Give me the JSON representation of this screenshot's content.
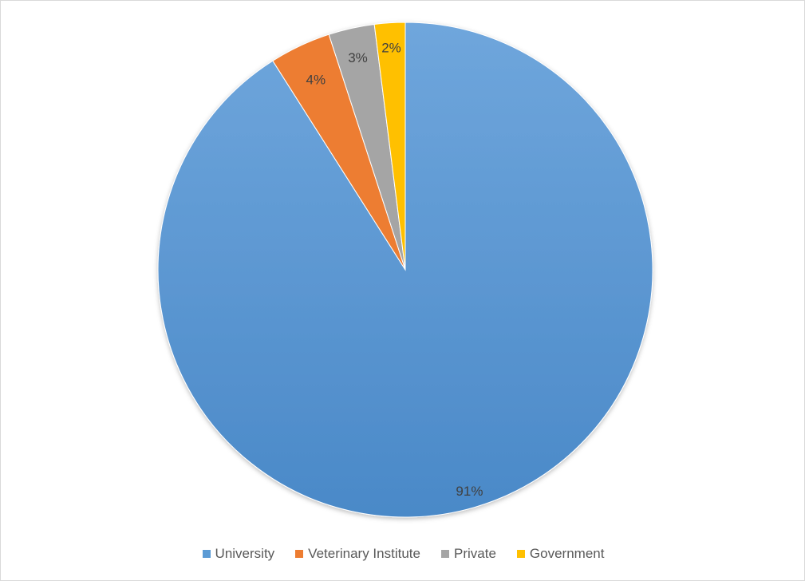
{
  "chart_data": {
    "type": "pie",
    "title": "",
    "categories": [
      "University",
      "Veterinary Institute",
      "Private",
      "Government"
    ],
    "values": [
      91,
      4,
      3,
      2
    ],
    "data_labels": [
      "91%",
      "4%",
      "3%",
      "2%"
    ],
    "colors": [
      "#5b9bd5",
      "#ed7d31",
      "#a5a5a5",
      "#ffc000"
    ],
    "legend_position": "bottom",
    "grid": false
  }
}
